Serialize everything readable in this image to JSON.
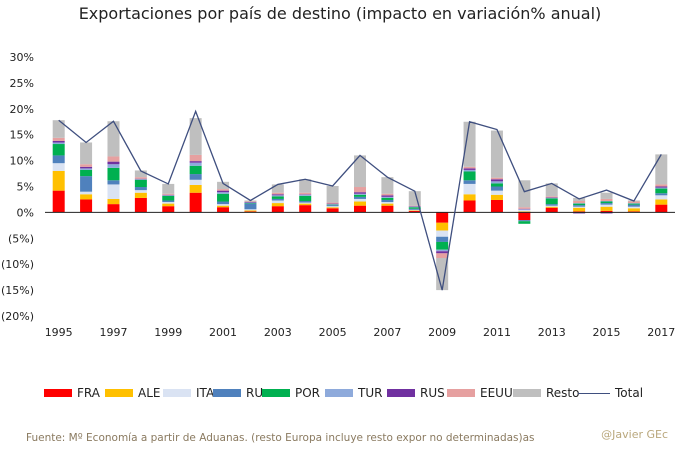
{
  "chart_data": {
    "type": "bar",
    "stacked": true,
    "title": "Exportaciones por país  de destino (impacto en variación% anual)",
    "categories": [
      "1995",
      "1996",
      "1997",
      "1998",
      "1999",
      "2000",
      "2001",
      "2002",
      "2003",
      "2004",
      "2005",
      "2006",
      "2007",
      "2008",
      "2009",
      "2010",
      "2011",
      "2012",
      "2013",
      "2014",
      "2015",
      "2016",
      "2017"
    ],
    "x_tick_labels": [
      "1995",
      "1997",
      "1999",
      "2001",
      "2003",
      "2005",
      "2007",
      "2009",
      "2011",
      "2013",
      "2015",
      "2017"
    ],
    "y_ticks": [
      "30%",
      "25%",
      "20%",
      "15%",
      "10%",
      "5%",
      "0%",
      "(5%)",
      "(10%)",
      "(15%)",
      "(20%)"
    ],
    "ylim": [
      -20,
      30
    ],
    "series": [
      {
        "name": "FRA",
        "color": "#ff0000",
        "values": [
          4.2,
          2.5,
          1.6,
          2.8,
          1.2,
          3.8,
          1.0,
          0.2,
          1.2,
          1.4,
          0.8,
          1.3,
          1.3,
          0.3,
          -2.0,
          2.3,
          2.4,
          -1.5,
          0.9,
          0.2,
          0.3,
          0.2,
          1.5
        ]
      },
      {
        "name": "ALE",
        "color": "#ffc000",
        "values": [
          3.8,
          1.0,
          1.0,
          1.0,
          0.5,
          1.5,
          0.3,
          0.2,
          0.6,
          0.3,
          0.2,
          0.8,
          0.4,
          0.1,
          -1.5,
          1.2,
          1.0,
          0.2,
          0.2,
          0.7,
          0.8,
          0.6,
          1.0
        ]
      },
      {
        "name": "ITA",
        "color": "#dae3f3",
        "values": [
          1.5,
          0.5,
          2.8,
          0.5,
          0.3,
          1.0,
          0.3,
          0.2,
          0.5,
          0.2,
          0.2,
          0.5,
          0.3,
          0.1,
          -1.2,
          2.0,
          0.8,
          0.3,
          0.2,
          0.2,
          0.4,
          0.3,
          0.8
        ]
      },
      {
        "name": "RU",
        "color": "#4f81bd",
        "values": [
          1.5,
          3.0,
          0.8,
          0.6,
          0.3,
          1.1,
          0.5,
          1.1,
          0.3,
          0.3,
          0.2,
          0.4,
          0.4,
          0.2,
          -1.0,
          0.7,
          0.8,
          -0.2,
          0.3,
          0.3,
          0.3,
          0.4,
          0.4
        ]
      },
      {
        "name": "POR",
        "color": "#00b050",
        "values": [
          2.2,
          1.2,
          2.4,
          1.4,
          0.9,
          1.6,
          1.5,
          0.1,
          0.5,
          1.0,
          0.1,
          0.4,
          0.4,
          0.3,
          -1.5,
          1.7,
          0.6,
          -0.5,
          1.1,
          0.3,
          0.3,
          0.2,
          0.9
        ]
      },
      {
        "name": "TUR",
        "color": "#8eaadb",
        "values": [
          0.3,
          0.3,
          0.7,
          0.1,
          0.1,
          0.6,
          0.3,
          0.1,
          0.2,
          0.2,
          0.1,
          0.2,
          0.2,
          0.1,
          -0.3,
          0.3,
          0.4,
          0.1,
          0.1,
          0.1,
          0.1,
          0.1,
          0.2
        ]
      },
      {
        "name": "RUS",
        "color": "#7030a0",
        "values": [
          0.3,
          0.3,
          0.5,
          0.1,
          0.1,
          0.3,
          0.3,
          0.1,
          0.2,
          0.1,
          0.1,
          0.3,
          0.3,
          0.1,
          -0.4,
          0.3,
          0.4,
          0.1,
          0.1,
          -0.2,
          -0.2,
          0.0,
          0.2
        ]
      },
      {
        "name": "EEUU",
        "color": "#e6a0a0",
        "values": [
          0.6,
          0.5,
          1.0,
          0.3,
          0.2,
          1.2,
          0.3,
          0.1,
          0.3,
          0.3,
          0.2,
          1.0,
          0.3,
          0.1,
          -0.9,
          0.3,
          0.3,
          0.3,
          0.2,
          0.4,
          0.4,
          0.3,
          0.4
        ]
      },
      {
        "name": "Resto",
        "color": "#bfbfbf",
        "values": [
          3.4,
          4.2,
          6.8,
          1.3,
          1.9,
          7.1,
          1.4,
          0.2,
          1.6,
          2.6,
          3.2,
          6.1,
          3.2,
          2.8,
          -6.2,
          8.7,
          9.1,
          5.2,
          2.5,
          0.6,
          1.2,
          0.2,
          5.8
        ]
      },
      {
        "name": "Total",
        "color": "#3f4f7f",
        "kind": "line",
        "values": [
          17.8,
          13.5,
          17.6,
          8.0,
          5.5,
          19.5,
          5.6,
          2.3,
          5.4,
          6.4,
          5.1,
          11.0,
          6.8,
          4.1,
          -15.0,
          17.5,
          16.0,
          4.0,
          5.6,
          2.6,
          4.3,
          2.2,
          11.2
        ]
      }
    ]
  },
  "legend": {
    "items": [
      {
        "label": "FRA",
        "color": "#ff0000",
        "kind": "box"
      },
      {
        "label": "ALE",
        "color": "#ffc000",
        "kind": "box"
      },
      {
        "label": "ITA",
        "color": "#dae3f3",
        "kind": "box"
      },
      {
        "label": "RU",
        "color": "#4f81bd",
        "kind": "box"
      },
      {
        "label": "POR",
        "color": "#00b050",
        "kind": "box"
      },
      {
        "label": "TUR",
        "color": "#8eaadb",
        "kind": "box"
      },
      {
        "label": "RUS",
        "color": "#7030a0",
        "kind": "box"
      },
      {
        "label": "EEUU",
        "color": "#e6a0a0",
        "kind": "box"
      },
      {
        "label": "Resto",
        "color": "#bfbfbf",
        "kind": "box"
      },
      {
        "label": "Total",
        "color": "#3f4f7f",
        "kind": "line"
      }
    ]
  },
  "footer": {
    "source": "Fuente: Mº Economía a partir de Aduanas. (resto Europa incluye resto expor no determinadas)as",
    "credit": "@Javier GEc"
  }
}
